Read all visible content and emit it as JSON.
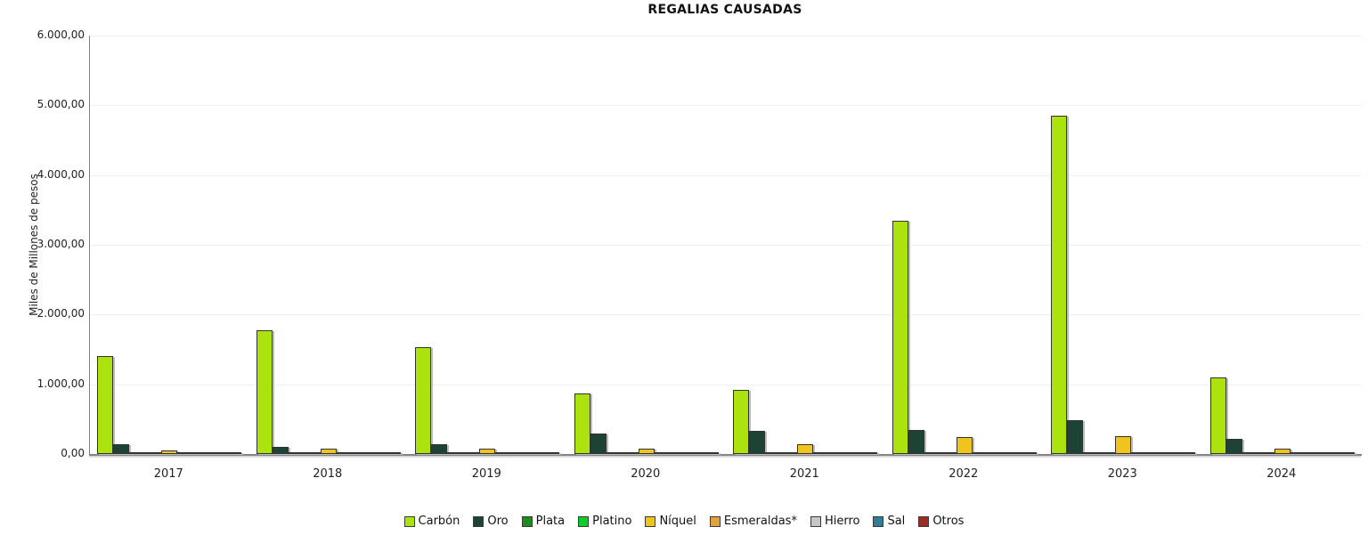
{
  "chart_data": {
    "type": "bar",
    "title": "REGALIAS CAUSADAS",
    "xlabel": "",
    "ylabel": "Miles de Millones de pesos",
    "ylim": [
      0,
      6000
    ],
    "ytick_step": 1000,
    "ytick_labels": [
      "0,00",
      "1.000,00",
      "2.000,00",
      "3.000,00",
      "4.000,00",
      "5.000,00",
      "6.000,00"
    ],
    "categories": [
      "2017",
      "2018",
      "2019",
      "2020",
      "2021",
      "2022",
      "2023",
      "2024"
    ],
    "grid": true,
    "legend_position": "bottom",
    "series": [
      {
        "name": "Carbón",
        "color": "#ACE20D",
        "values": [
          1410,
          1770,
          1535,
          865,
          915,
          3345,
          4855,
          1095
        ]
      },
      {
        "name": "Oro",
        "color": "#1C4334",
        "values": [
          135,
          105,
          145,
          290,
          335,
          345,
          480,
          220
        ]
      },
      {
        "name": "Plata",
        "color": "#1E8C1E",
        "values": [
          2,
          2,
          2,
          2,
          2,
          3,
          3,
          2
        ]
      },
      {
        "name": "Platino",
        "color": "#0BCE2B",
        "values": [
          3,
          3,
          2,
          2,
          3,
          3,
          3,
          2
        ]
      },
      {
        "name": "Níquel",
        "color": "#EFC41C",
        "values": [
          45,
          80,
          80,
          80,
          135,
          240,
          260,
          80
        ]
      },
      {
        "name": "Esmeraldas*",
        "color": "#E2A13D",
        "values": [
          5,
          5,
          5,
          5,
          8,
          8,
          8,
          5
        ]
      },
      {
        "name": "Hierro",
        "color": "#C6C6C6",
        "values": [
          2,
          2,
          2,
          2,
          2,
          3,
          3,
          2
        ]
      },
      {
        "name": "Sal",
        "color": "#2F7E95",
        "values": [
          3,
          3,
          3,
          3,
          4,
          5,
          5,
          3
        ]
      },
      {
        "name": "Otros",
        "color": "#9E2B23",
        "values": [
          5,
          5,
          5,
          5,
          10,
          25,
          28,
          10
        ]
      }
    ]
  }
}
